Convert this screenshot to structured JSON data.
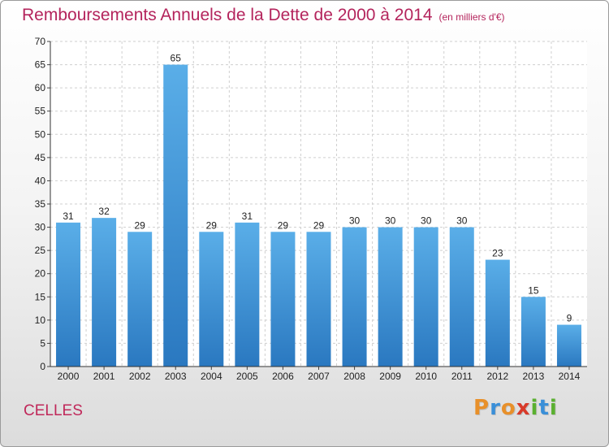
{
  "title": "Remboursements Annuels de la Dette de 2000 à 2014",
  "subtitle": "(en milliers d'€)",
  "commune": "CELLES",
  "logo": {
    "letters": [
      "P",
      "r",
      "o",
      "x",
      "i",
      "t",
      "i"
    ],
    "colors": [
      "#e8902a",
      "#3a8fd8",
      "#e8902a",
      "#d83a2a",
      "#5ab030",
      "#3a8fd8",
      "#5ab030"
    ]
  },
  "colors": {
    "bar_top": "#5aaee8",
    "bar_bottom": "#2a78c0",
    "title": "#b4245c",
    "grid": "#cfcfcf"
  },
  "chart_data": {
    "type": "bar",
    "categories": [
      "2000",
      "2001",
      "2002",
      "2003",
      "2004",
      "2005",
      "2006",
      "2007",
      "2008",
      "2009",
      "2010",
      "2011",
      "2012",
      "2013",
      "2014"
    ],
    "values": [
      31,
      32,
      29,
      65,
      29,
      31,
      29,
      29,
      30,
      30,
      30,
      30,
      23,
      15,
      9
    ],
    "ylim": [
      0,
      70
    ],
    "yticks": [
      0,
      5,
      10,
      15,
      20,
      25,
      30,
      35,
      40,
      45,
      50,
      55,
      60,
      65,
      70
    ],
    "grid": true,
    "data_labels": true
  }
}
